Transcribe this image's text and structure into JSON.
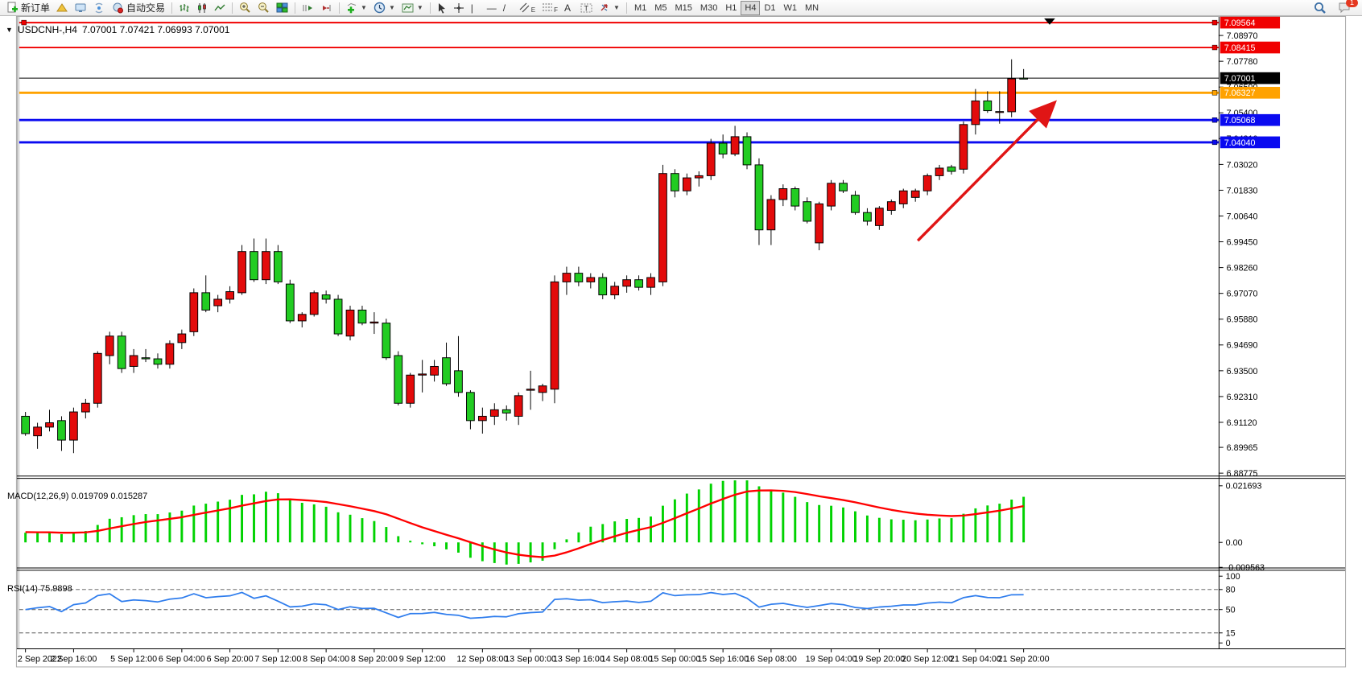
{
  "toolbar": {
    "new_order_label": "新订单",
    "auto_trading_label": "自动交易",
    "channel_tag": "E",
    "fibo_tag": "F",
    "text_tool": "A",
    "label_tool": "T",
    "timeframes": [
      "M1",
      "M5",
      "M15",
      "M30",
      "H1",
      "H4",
      "D1",
      "W1",
      "MN"
    ],
    "active_timeframe": "H4",
    "badge_count": "1"
  },
  "chart": {
    "title_symbol": "USDCNH-,H4",
    "title_ohlc": "7.07001 7.07421 7.06993 7.07001"
  },
  "chart_data": {
    "type": "candlestick",
    "symbol": "USDCNH-,H4",
    "timeframe": "H4",
    "price_range": {
      "top": 7.09828,
      "bottom": 6.88661
    },
    "axis_ticks": [
      "7.08970",
      "7.07780",
      "7.06590",
      "7.05400",
      "7.04210",
      "7.03020",
      "7.01830",
      "7.00640",
      "6.99450",
      "6.98260",
      "6.97070",
      "6.95880",
      "6.94690",
      "6.93500",
      "6.92310",
      "6.91120",
      "6.89965",
      "6.88775"
    ],
    "current_price": {
      "value": 7.07001,
      "label": "7.07001",
      "color": "#000000"
    },
    "hlines": [
      {
        "price": 7.09564,
        "label": "7.09564",
        "color": "#f00000",
        "width": 2,
        "handles": "both"
      },
      {
        "price": 7.08415,
        "label": "7.08415",
        "color": "#f00000",
        "width": 2,
        "handles": "right"
      },
      {
        "price": 7.06327,
        "label": "7.06327",
        "color": "#ffa200",
        "width": 3,
        "handles": "right"
      },
      {
        "price": 7.05068,
        "label": "7.05068",
        "color": "#0a0af0",
        "width": 3,
        "handles": "right"
      },
      {
        "price": 7.0404,
        "label": "7.04040",
        "color": "#0a0af0",
        "width": 3,
        "handles": "right"
      }
    ],
    "trend_arrow": {
      "bar_start": 74.2,
      "price_start": 6.995,
      "bar_end": 86.2,
      "price_end": 7.0615,
      "color": "#e01515"
    },
    "colors": {
      "bull": "#e30b0b",
      "bear": "#22cc22",
      "wick": "#000000",
      "macd_hist": "#00d200",
      "macd_signal": "#ff0000",
      "rsi_line": "#2f7ded"
    },
    "candles": [
      [
        6.914,
        6.916,
        6.905,
        6.906
      ],
      [
        6.905,
        6.911,
        6.899,
        6.909
      ],
      [
        6.909,
        6.917,
        6.907,
        6.911
      ],
      [
        6.912,
        6.914,
        6.898,
        6.903
      ],
      [
        6.903,
        6.918,
        6.897,
        6.916
      ],
      [
        6.916,
        6.922,
        6.913,
        6.92
      ],
      [
        6.92,
        6.944,
        6.918,
        6.943
      ],
      [
        6.942,
        6.953,
        6.938,
        6.951
      ],
      [
        6.951,
        6.953,
        6.934,
        6.936
      ],
      [
        6.937,
        6.945,
        6.934,
        6.942
      ],
      [
        6.941,
        6.945,
        6.939,
        6.9405
      ],
      [
        6.9405,
        6.943,
        6.936,
        6.938
      ],
      [
        6.938,
        6.949,
        6.936,
        6.9475
      ],
      [
        6.948,
        6.954,
        6.945,
        6.952
      ],
      [
        6.953,
        6.973,
        6.951,
        6.971
      ],
      [
        6.971,
        6.979,
        6.962,
        6.963
      ],
      [
        6.965,
        6.97,
        6.962,
        6.968
      ],
      [
        6.968,
        6.974,
        6.966,
        6.9715
      ],
      [
        6.971,
        6.993,
        6.97,
        6.99
      ],
      [
        6.99,
        6.996,
        6.976,
        6.977
      ],
      [
        6.977,
        6.996,
        6.975,
        6.99
      ],
      [
        6.99,
        6.993,
        6.975,
        6.976
      ],
      [
        6.975,
        6.977,
        6.957,
        6.958
      ],
      [
        6.958,
        6.962,
        6.955,
        6.961
      ],
      [
        6.961,
        6.972,
        6.96,
        6.971
      ],
      [
        6.97,
        6.972,
        6.966,
        6.968
      ],
      [
        6.968,
        6.97,
        6.951,
        6.952
      ],
      [
        6.951,
        6.965,
        6.949,
        6.963
      ],
      [
        6.963,
        6.965,
        6.956,
        6.957
      ],
      [
        6.957,
        6.962,
        6.952,
        6.9575
      ],
      [
        6.957,
        6.959,
        6.94,
        6.941
      ],
      [
        6.942,
        6.944,
        6.919,
        6.92
      ],
      [
        6.92,
        6.934,
        6.918,
        6.933
      ],
      [
        6.933,
        6.94,
        6.925,
        6.9335
      ],
      [
        6.933,
        6.94,
        6.93,
        6.937
      ],
      [
        6.941,
        6.948,
        6.928,
        6.929
      ],
      [
        6.935,
        6.951,
        6.923,
        6.925
      ],
      [
        6.925,
        6.926,
        6.908,
        6.912
      ],
      [
        6.912,
        6.918,
        6.906,
        6.914
      ],
      [
        6.914,
        6.92,
        6.91,
        6.917
      ],
      [
        6.917,
        6.919,
        6.912,
        6.9155
      ],
      [
        6.914,
        6.925,
        6.91,
        6.9235
      ],
      [
        6.926,
        6.935,
        6.917,
        6.9265
      ],
      [
        6.925,
        6.929,
        6.921,
        6.928
      ],
      [
        6.9265,
        6.979,
        6.92,
        6.976
      ],
      [
        6.976,
        6.983,
        6.97,
        6.98
      ],
      [
        6.98,
        6.983,
        6.974,
        6.976
      ],
      [
        6.976,
        6.98,
        6.973,
        6.978
      ],
      [
        6.978,
        6.98,
        6.968,
        6.97
      ],
      [
        6.97,
        6.976,
        6.968,
        6.974
      ],
      [
        6.974,
        6.979,
        6.971,
        6.977
      ],
      [
        6.977,
        6.979,
        6.972,
        6.9735
      ],
      [
        6.9735,
        6.98,
        6.97,
        6.978
      ],
      [
        6.976,
        7.03,
        6.974,
        7.026
      ],
      [
        7.026,
        7.028,
        7.015,
        7.018
      ],
      [
        7.018,
        7.026,
        7.016,
        7.024
      ],
      [
        7.024,
        7.027,
        7.02,
        7.025
      ],
      [
        7.025,
        7.042,
        7.023,
        7.04
      ],
      [
        7.04,
        7.044,
        7.033,
        7.035
      ],
      [
        7.035,
        7.048,
        7.034,
        7.043
      ],
      [
        7.043,
        7.045,
        7.028,
        7.03
      ],
      [
        7.03,
        7.033,
        6.993,
        7.0
      ],
      [
        7.0,
        7.016,
        6.993,
        7.014
      ],
      [
        7.014,
        7.021,
        7.011,
        7.019
      ],
      [
        7.019,
        7.02,
        7.009,
        7.011
      ],
      [
        7.013,
        7.015,
        7.003,
        7.004
      ],
      [
        6.994,
        7.013,
        6.9906,
        7.012
      ],
      [
        7.011,
        7.023,
        7.009,
        7.0215
      ],
      [
        7.0215,
        7.023,
        7.017,
        7.018
      ],
      [
        7.016,
        7.018,
        7.007,
        7.008
      ],
      [
        7.008,
        7.01,
        7.002,
        7.004
      ],
      [
        7.002,
        7.011,
        7.0,
        7.01
      ],
      [
        7.009,
        7.014,
        7.007,
        7.013
      ],
      [
        7.012,
        7.019,
        7.01,
        7.018
      ],
      [
        7.015,
        7.019,
        7.013,
        7.018
      ],
      [
        7.018,
        7.026,
        7.016,
        7.025
      ],
      [
        7.025,
        7.03,
        7.023,
        7.0285
      ],
      [
        7.029,
        7.03,
        7.0255,
        7.027
      ],
      [
        7.028,
        7.05,
        7.026,
        7.0486
      ],
      [
        7.0486,
        7.065,
        7.044,
        7.0595
      ],
      [
        7.0595,
        7.064,
        7.054,
        7.055
      ],
      [
        7.0545,
        7.064,
        7.049,
        7.0546
      ],
      [
        7.0545,
        7.0787,
        7.052,
        7.0697
      ],
      [
        7.07001,
        7.07421,
        7.06993,
        7.07001
      ]
    ],
    "time_labels": [
      {
        "t": "2 Sep 2022",
        "b": 0
      },
      {
        "t": "2 Sep 16:00",
        "b": 4
      },
      {
        "t": "5 Sep 12:00",
        "b": 9
      },
      {
        "t": "6 Sep 04:00",
        "b": 13
      },
      {
        "t": "6 Sep 20:00",
        "b": 17
      },
      {
        "t": "7 Sep 12:00",
        "b": 21
      },
      {
        "t": "8 Sep 04:00",
        "b": 25
      },
      {
        "t": "8 Sep 20:00",
        "b": 29
      },
      {
        "t": "9 Sep 12:00",
        "b": 33
      },
      {
        "t": "12 Sep 08:00",
        "b": 38
      },
      {
        "t": "13 Sep 00:00",
        "b": 42
      },
      {
        "t": "13 Sep 16:00",
        "b": 46
      },
      {
        "t": "14 Sep 08:00",
        "b": 50
      },
      {
        "t": "15 Sep 00:00",
        "b": 54
      },
      {
        "t": "15 Sep 16:00",
        "b": 58
      },
      {
        "t": "16 Sep 08:00",
        "b": 62
      },
      {
        "t": "19 Sep 04:00",
        "b": 67
      },
      {
        "t": "19 Sep 20:00",
        "b": 71
      },
      {
        "t": "20 Sep 12:00",
        "b": 75
      },
      {
        "t": "21 Sep 04:00",
        "b": 79
      },
      {
        "t": "21 Sep 20:00",
        "b": 83
      }
    ],
    "indicators": {
      "macd": {
        "label": "MACD(12,26,9) 0.019709 0.015287",
        "params": [
          12,
          26,
          9
        ],
        "axis_labels": [
          {
            "text": "0.021693",
            "value": 0.021693
          },
          {
            "text": "0.00",
            "value": 0.0
          },
          {
            "text": "-0.009563",
            "value": -0.009563
          }
        ]
      },
      "rsi": {
        "label": "RSI(14) 75.9898",
        "period": 14,
        "axis_labels": [
          {
            "text": "100",
            "value": 100
          },
          {
            "text": "80",
            "value": 80
          },
          {
            "text": "50",
            "value": 50
          },
          {
            "text": "15",
            "value": 15
          },
          {
            "text": "0",
            "value": 0
          }
        ],
        "dashed_levels": [
          80,
          50,
          15
        ]
      }
    }
  }
}
